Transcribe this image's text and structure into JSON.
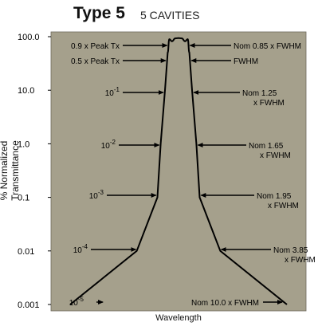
{
  "chart_data": {
    "type": "line",
    "title": "Type 5",
    "subtitle": "5 CAVITIES",
    "xlabel": "Wavelength",
    "ylabel": "% Normalized Transmittance",
    "yscale": "log",
    "ylim": [
      0.001,
      100
    ],
    "y_ticks": [
      {
        "value": 100,
        "label": "100.0"
      },
      {
        "value": 10,
        "label": "10.0"
      },
      {
        "value": 1,
        "label": "1.0"
      },
      {
        "value": 0.1,
        "label": "0.1"
      },
      {
        "value": 0.01,
        "label": "0.01"
      },
      {
        "value": 0.001,
        "label": "0.001"
      }
    ],
    "grid": false,
    "background_color": "#a5a08c",
    "line_color": "#000000",
    "series": [
      {
        "x": [
          -10.0,
          -3.85,
          -1.95,
          -1.65,
          -1.25,
          -1.0,
          -0.85,
          -0.6,
          -0.3,
          0.0,
          0.3,
          0.6,
          0.85,
          1.0,
          1.25,
          1.65,
          1.95,
          3.85,
          10.0
        ],
        "y": [
          0.001,
          0.01,
          0.1,
          1,
          10,
          50,
          90,
          82,
          93,
          94,
          93,
          82,
          90,
          50,
          10,
          1,
          0.1,
          0.01,
          0.001
        ]
      }
    ],
    "annotations_left": [
      {
        "text": "0.9 x Peak Tx",
        "y": 90
      },
      {
        "text": "0.5 x Peak Tx",
        "y": 50
      },
      {
        "base": "10",
        "exp": "-1",
        "y": 0.1
      },
      {
        "base": "10",
        "exp": "-2",
        "y": 0.01
      },
      {
        "base": "10",
        "exp": "-3",
        "y": 0.001
      },
      {
        "base": "10",
        "exp": "-4",
        "y": 0.0001
      },
      {
        "base": "10",
        "exp": "-5",
        "y": 1e-05
      }
    ],
    "annotations_right": [
      {
        "lines": [
          "Nom 0.85 x FWHM"
        ],
        "y": 90
      },
      {
        "lines": [
          "FWHM"
        ],
        "y": 50
      },
      {
        "lines": [
          "Nom 1.25",
          "x FWHM"
        ],
        "y": 0.1
      },
      {
        "lines": [
          "Nom 1.65",
          "x FWHM"
        ],
        "y": 0.01
      },
      {
        "lines": [
          "Nom 1.95",
          "x FWHM"
        ],
        "y": 0.001
      },
      {
        "lines": [
          "Nom 3.85",
          "x FWHM"
        ],
        "y": 0.0001
      },
      {
        "lines": [
          "Nom 10.0 x FWHM"
        ],
        "y": 1e-05
      }
    ]
  }
}
